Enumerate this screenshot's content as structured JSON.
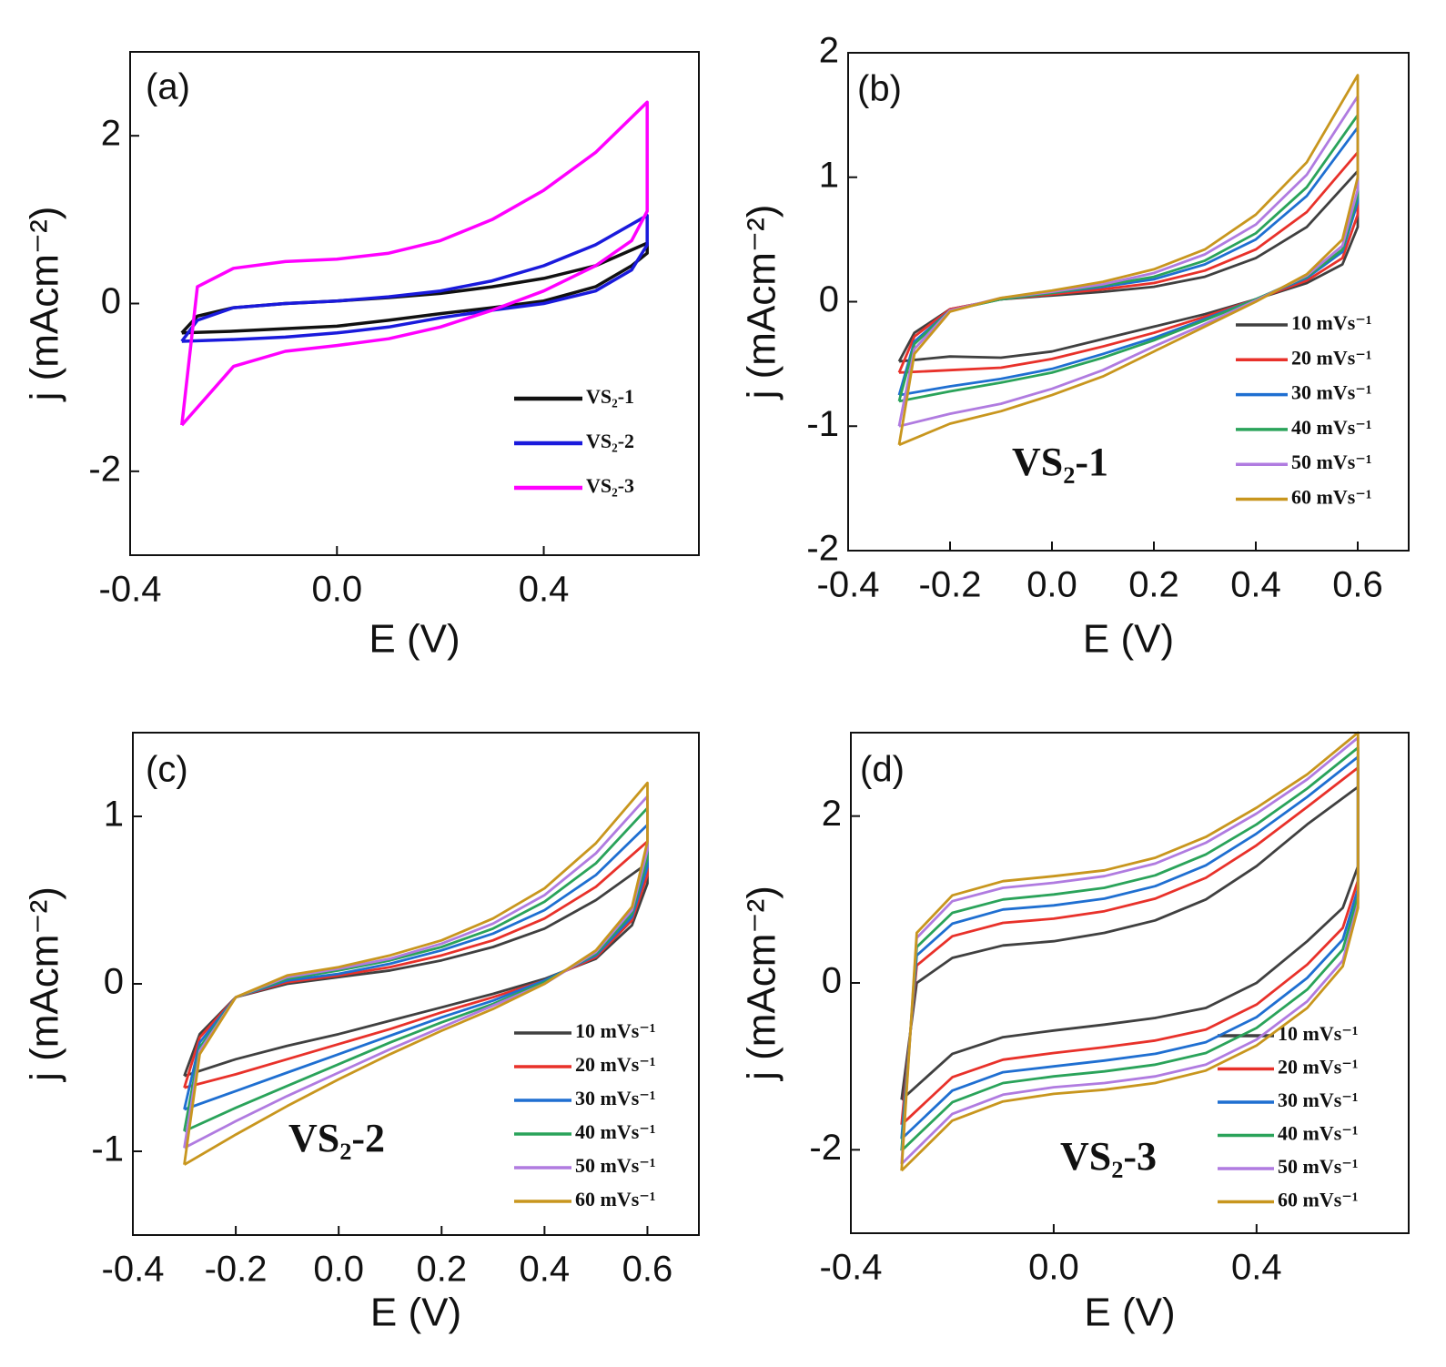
{
  "chart_data": [
    {
      "type": "line",
      "panel_label": "(a)",
      "x_label": "E (V)",
      "y_label": "j (mAcm⁻²)",
      "xlim": [
        -0.4,
        0.7
      ],
      "ylim": [
        -3,
        3
      ],
      "xticks": [
        -0.4,
        {
          "value": 0,
          "label": "0.0"
        },
        0.4
      ],
      "yticks": [
        -2,
        0,
        2
      ],
      "legend": "lower right",
      "x": [
        -0.3,
        -0.27,
        -0.2,
        -0.1,
        0,
        0.1,
        0.2,
        0.3,
        0.4,
        0.5,
        0.6,
        0.6,
        0.57,
        0.5,
        0.4,
        0.3,
        0.2,
        0.1,
        0,
        -0.1,
        -0.2,
        -0.3
      ],
      "series": [
        {
          "name": "VS₂-1",
          "color": "#111111",
          "values": [
            -0.35,
            -0.15,
            -0.05,
            0,
            0.03,
            0.07,
            0.12,
            0.2,
            0.3,
            0.45,
            0.72,
            0.6,
            0.45,
            0.2,
            0.03,
            -0.05,
            -0.12,
            -0.2,
            -0.27,
            -0.3,
            -0.33,
            -0.35
          ]
        },
        {
          "name": "VS₂-2",
          "color": "#1a1adc",
          "values": [
            -0.45,
            -0.2,
            -0.05,
            0,
            0.03,
            0.08,
            0.15,
            0.27,
            0.45,
            0.7,
            1.05,
            0.7,
            0.4,
            0.15,
            0,
            -0.08,
            -0.17,
            -0.28,
            -0.35,
            -0.4,
            -0.43,
            -0.45
          ]
        },
        {
          "name": "VS₂-3",
          "color": "#ff00ff",
          "values": [
            -1.45,
            0.2,
            0.42,
            0.5,
            0.53,
            0.6,
            0.75,
            1.0,
            1.35,
            1.8,
            2.4,
            1.1,
            0.75,
            0.45,
            0.15,
            -0.08,
            -0.28,
            -0.42,
            -0.5,
            -0.57,
            -0.75,
            -1.45
          ]
        }
      ]
    },
    {
      "type": "line",
      "panel_label": "(b)",
      "x_label": "E (V)",
      "y_label": "j (mAcm⁻²)",
      "annotation": "VS₂-1",
      "xlim": [
        -0.4,
        0.7
      ],
      "ylim": [
        -2,
        2
      ],
      "xticks": [
        -0.4,
        -0.2,
        {
          "value": 0,
          "label": "0.0"
        },
        0.2,
        0.4,
        0.6
      ],
      "yticks": [
        -2,
        -1,
        0,
        1,
        2
      ],
      "legend": "lower right",
      "x": [
        -0.3,
        -0.27,
        -0.2,
        -0.1,
        0,
        0.1,
        0.2,
        0.3,
        0.4,
        0.5,
        0.6,
        0.6,
        0.57,
        0.5,
        0.4,
        0.3,
        0.2,
        0.1,
        0,
        -0.1,
        -0.2,
        -0.3
      ],
      "series": [
        {
          "name": "10 mVs⁻¹",
          "color": "#404040",
          "values": [
            -0.48,
            -0.25,
            -0.06,
            0.02,
            0.05,
            0.08,
            0.12,
            0.2,
            0.35,
            0.6,
            1.05,
            0.6,
            0.3,
            0.15,
            0.02,
            -0.1,
            -0.2,
            -0.3,
            -0.4,
            -0.45,
            -0.44,
            -0.48
          ]
        },
        {
          "name": "20 mVs⁻¹",
          "color": "#e8312a",
          "values": [
            -0.57,
            -0.28,
            -0.06,
            0.02,
            0.06,
            0.1,
            0.15,
            0.25,
            0.42,
            0.72,
            1.2,
            0.7,
            0.35,
            0.17,
            0.02,
            -0.12,
            -0.25,
            -0.36,
            -0.46,
            -0.53,
            -0.55,
            -0.57
          ]
        },
        {
          "name": "30 mVs⁻¹",
          "color": "#1f6fd1",
          "values": [
            -0.75,
            -0.32,
            -0.07,
            0.02,
            0.07,
            0.12,
            0.18,
            0.3,
            0.5,
            0.85,
            1.4,
            0.8,
            0.4,
            0.19,
            0.02,
            -0.14,
            -0.29,
            -0.42,
            -0.54,
            -0.62,
            -0.68,
            -0.75
          ]
        },
        {
          "name": "40 mVs⁻¹",
          "color": "#2aa35a",
          "values": [
            -0.8,
            -0.34,
            -0.07,
            0.02,
            0.07,
            0.13,
            0.2,
            0.33,
            0.55,
            0.92,
            1.5,
            0.85,
            0.42,
            0.2,
            0.02,
            -0.15,
            -0.31,
            -0.45,
            -0.57,
            -0.65,
            -0.72,
            -0.8
          ]
        },
        {
          "name": "50 mVs⁻¹",
          "color": "#b07be0",
          "values": [
            -1.0,
            -0.38,
            -0.07,
            0.03,
            0.08,
            0.14,
            0.23,
            0.38,
            0.62,
            1.02,
            1.65,
            0.9,
            0.45,
            0.21,
            0.01,
            -0.18,
            -0.36,
            -0.55,
            -0.7,
            -0.82,
            -0.9,
            -1.0
          ]
        },
        {
          "name": "60 mVs⁻¹",
          "color": "#c8961e",
          "values": [
            -1.15,
            -0.42,
            -0.08,
            0.03,
            0.09,
            0.16,
            0.26,
            0.42,
            0.7,
            1.12,
            1.82,
            1.0,
            0.5,
            0.22,
            0,
            -0.2,
            -0.4,
            -0.6,
            -0.75,
            -0.88,
            -0.98,
            -1.15
          ]
        }
      ]
    },
    {
      "type": "line",
      "panel_label": "(c)",
      "x_label": "E (V)",
      "y_label": "j (mAcm⁻²)",
      "annotation": "VS₂-2",
      "xlim": [
        -0.4,
        0.7
      ],
      "ylim": [
        -1.5,
        1.5
      ],
      "xticks": [
        -0.4,
        -0.2,
        {
          "value": 0,
          "label": "0.0"
        },
        0.2,
        0.4,
        0.6
      ],
      "yticks": [
        -1,
        0,
        1
      ],
      "legend": "lower right",
      "x": [
        -0.3,
        -0.27,
        -0.2,
        -0.1,
        0,
        0.1,
        0.2,
        0.3,
        0.4,
        0.5,
        0.6,
        0.6,
        0.57,
        0.5,
        0.4,
        0.3,
        0.2,
        0.1,
        0,
        -0.1,
        -0.2,
        -0.3
      ],
      "series": [
        {
          "name": "10 mVs⁻¹",
          "color": "#404040",
          "values": [
            -0.55,
            -0.3,
            -0.08,
            0,
            0.04,
            0.08,
            0.14,
            0.22,
            0.33,
            0.5,
            0.72,
            0.6,
            0.35,
            0.15,
            0.03,
            -0.06,
            -0.14,
            -0.22,
            -0.3,
            -0.37,
            -0.45,
            -0.55
          ]
        },
        {
          "name": "20 mVs⁻¹",
          "color": "#e8312a",
          "values": [
            -0.62,
            -0.32,
            -0.08,
            0.01,
            0.05,
            0.1,
            0.17,
            0.26,
            0.39,
            0.58,
            0.85,
            0.65,
            0.38,
            0.16,
            0.02,
            -0.08,
            -0.17,
            -0.27,
            -0.36,
            -0.45,
            -0.54,
            -0.62
          ]
        },
        {
          "name": "30 mVs⁻¹",
          "color": "#1f6fd1",
          "values": [
            -0.75,
            -0.35,
            -0.08,
            0.02,
            0.06,
            0.12,
            0.2,
            0.3,
            0.44,
            0.65,
            0.95,
            0.7,
            0.4,
            0.17,
            0.02,
            -0.1,
            -0.2,
            -0.31,
            -0.42,
            -0.53,
            -0.64,
            -0.75
          ]
        },
        {
          "name": "40 mVs⁻¹",
          "color": "#2aa35a",
          "values": [
            -0.88,
            -0.38,
            -0.08,
            0.03,
            0.08,
            0.14,
            0.22,
            0.33,
            0.49,
            0.72,
            1.05,
            0.75,
            0.42,
            0.18,
            0.01,
            -0.12,
            -0.23,
            -0.35,
            -0.48,
            -0.61,
            -0.74,
            -0.88
          ]
        },
        {
          "name": "50 mVs⁻¹",
          "color": "#b07be0",
          "values": [
            -0.98,
            -0.4,
            -0.08,
            0.04,
            0.09,
            0.15,
            0.24,
            0.36,
            0.53,
            0.78,
            1.12,
            0.8,
            0.44,
            0.19,
            0,
            -0.13,
            -0.26,
            -0.39,
            -0.53,
            -0.67,
            -0.82,
            -0.98
          ]
        },
        {
          "name": "60 mVs⁻¹",
          "color": "#c8961e",
          "values": [
            -1.08,
            -0.42,
            -0.08,
            0.05,
            0.1,
            0.17,
            0.26,
            0.39,
            0.57,
            0.84,
            1.2,
            0.85,
            0.46,
            0.2,
            0,
            -0.15,
            -0.28,
            -0.42,
            -0.57,
            -0.73,
            -0.9,
            -1.08
          ]
        }
      ]
    },
    {
      "type": "line",
      "panel_label": "(d)",
      "x_label": "E (V)",
      "y_label": "j (mAcm⁻²)",
      "annotation": "VS₂-3",
      "xlim": [
        -0.4,
        0.7
      ],
      "ylim": [
        -3,
        3
      ],
      "xticks": [
        -0.4,
        {
          "value": 0,
          "label": "0.0"
        },
        0.4
      ],
      "yticks": [
        -2,
        0,
        2
      ],
      "legend": "lower right",
      "x": [
        -0.3,
        -0.27,
        -0.2,
        -0.1,
        0,
        0.1,
        0.2,
        0.3,
        0.4,
        0.5,
        0.6,
        0.6,
        0.57,
        0.5,
        0.4,
        0.3,
        0.2,
        0.1,
        0,
        -0.1,
        -0.2,
        -0.3
      ],
      "series": [
        {
          "name": "10 mVs⁻¹",
          "color": "#404040",
          "values": [
            -1.4,
            0,
            0.3,
            0.45,
            0.5,
            0.6,
            0.75,
            1.0,
            1.4,
            1.9,
            2.35,
            1.4,
            0.9,
            0.5,
            0,
            -0.3,
            -0.42,
            -0.5,
            -0.57,
            -0.65,
            -0.85,
            -1.4
          ]
        },
        {
          "name": "20 mVs⁻¹",
          "color": "#e8312a",
          "values": [
            -1.7,
            0.21,
            0.56,
            0.72,
            0.77,
            0.86,
            1.01,
            1.26,
            1.65,
            2.11,
            2.58,
            1.23,
            0.66,
            0.22,
            -0.26,
            -0.56,
            -0.69,
            -0.77,
            -0.84,
            -0.92,
            -1.13,
            -1.7
          ]
        },
        {
          "name": "30 mVs⁻¹",
          "color": "#1f6fd1",
          "values": [
            -1.87,
            0.33,
            0.71,
            0.88,
            0.93,
            1.01,
            1.16,
            1.41,
            1.79,
            2.23,
            2.71,
            1.13,
            0.52,
            0.06,
            -0.41,
            -0.71,
            -0.85,
            -0.93,
            -1.0,
            -1.07,
            -1.29,
            -1.87
          ]
        },
        {
          "name": "40 mVs⁻¹",
          "color": "#2aa35a",
          "values": [
            -2.01,
            0.43,
            0.84,
            1.0,
            1.06,
            1.14,
            1.29,
            1.54,
            1.9,
            2.33,
            2.82,
            1.04,
            0.4,
            -0.08,
            -0.54,
            -0.84,
            -0.98,
            -1.06,
            -1.12,
            -1.2,
            -1.43,
            -2.01
          ]
        },
        {
          "name": "50 mVs⁻¹",
          "color": "#b07be0",
          "values": [
            -2.17,
            0.54,
            0.98,
            1.14,
            1.2,
            1.28,
            1.43,
            1.68,
            2.03,
            2.44,
            2.94,
            0.95,
            0.27,
            -0.22,
            -0.68,
            -0.98,
            -1.12,
            -1.2,
            -1.25,
            -1.34,
            -1.57,
            -2.17
          ]
        },
        {
          "name": "60 mVs⁻¹",
          "color": "#c8961e",
          "values": [
            -2.25,
            0.6,
            1.05,
            1.22,
            1.28,
            1.35,
            1.5,
            1.75,
            2.1,
            2.5,
            3.0,
            0.9,
            0.2,
            -0.3,
            -0.75,
            -1.05,
            -1.2,
            -1.28,
            -1.33,
            -1.42,
            -1.65,
            -2.25
          ]
        }
      ]
    }
  ]
}
